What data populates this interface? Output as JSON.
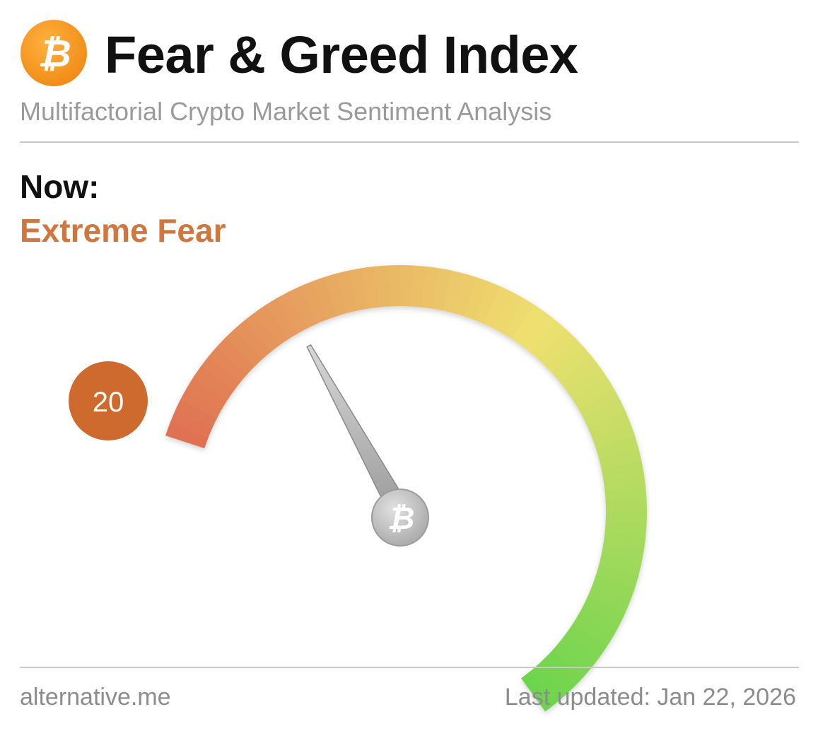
{
  "header": {
    "title": "Fear & Greed Index",
    "subtitle": "Multifactorial Crypto Market Sentiment Analysis",
    "logo_icon": "bitcoin-icon",
    "logo_color": "#f7931a"
  },
  "current": {
    "label": "Now:",
    "classification": "Extreme Fear",
    "classification_color": "#d0763f",
    "value": "20",
    "value_range": [
      0,
      100
    ]
  },
  "gauge": {
    "needle_hub_icon": "bitcoin-icon",
    "color_start": "#e07052",
    "color_mid": "#efe070",
    "color_end": "#6bd44c"
  },
  "footer": {
    "source": "alternative.me",
    "last_updated": "Last updated: Jan 22, 2026"
  }
}
